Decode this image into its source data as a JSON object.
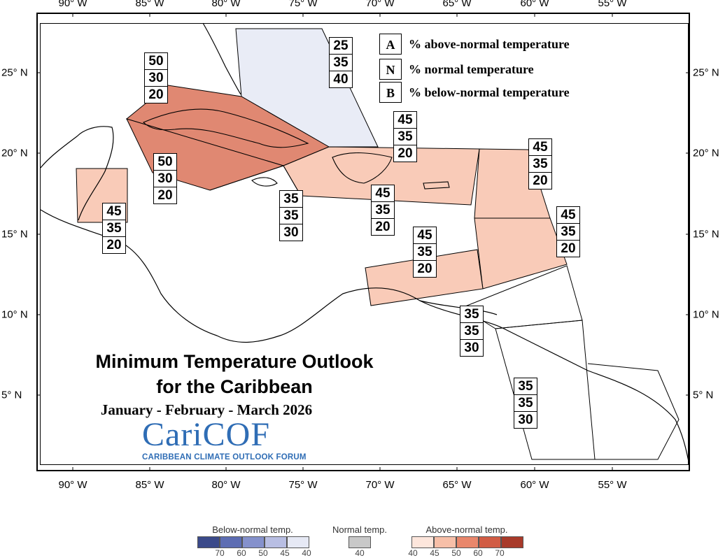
{
  "axes": {
    "longitudes": [
      "90° W",
      "85° W",
      "80° W",
      "75° W",
      "70° W",
      "65° W",
      "60° W",
      "55° W"
    ],
    "latitudes": [
      "25° N",
      "20° N",
      "15° N",
      "10° N",
      "5° N"
    ]
  },
  "legend_keys": [
    {
      "letter": "A",
      "text": "% above-normal temperature"
    },
    {
      "letter": "N",
      "text": "% normal temperature"
    },
    {
      "letter": "B",
      "text": "% below-normal temperature"
    }
  ],
  "regions": [
    {
      "id": "bahamas",
      "values": [
        "25",
        "35",
        "40"
      ],
      "fill": "#e9ecf6"
    },
    {
      "id": "cuba",
      "values": [
        "50",
        "30",
        "20"
      ],
      "fill": "#e08872"
    },
    {
      "id": "western-cuba-cayman",
      "values": [
        "50",
        "30",
        "20"
      ],
      "fill": "#e08872"
    },
    {
      "id": "belize",
      "values": [
        "45",
        "35",
        "20"
      ],
      "fill": "#f9cbb8"
    },
    {
      "id": "jamaica",
      "values": [
        "35",
        "35",
        "30"
      ],
      "fill": "#ffffff"
    },
    {
      "id": "hispaniola-pr",
      "values": [
        "45",
        "35",
        "20"
      ],
      "fill": "#f9cbb8"
    },
    {
      "id": "greater-antilles-east",
      "values": [
        "45",
        "35",
        "20"
      ],
      "fill": "#f9cbb8"
    },
    {
      "id": "leewards",
      "values": [
        "45",
        "35",
        "20"
      ],
      "fill": "#f9cbb8"
    },
    {
      "id": "windwards",
      "values": [
        "45",
        "35",
        "20"
      ],
      "fill": "#f9cbb8"
    },
    {
      "id": "abc-islands",
      "values": [
        "45",
        "35",
        "20"
      ],
      "fill": "#f9cbb8"
    },
    {
      "id": "trinidad-tobago",
      "values": [
        "35",
        "35",
        "30"
      ],
      "fill": "#ffffff"
    },
    {
      "id": "guianas",
      "values": [
        "35",
        "35",
        "30"
      ],
      "fill": "#ffffff"
    }
  ],
  "title": {
    "line1": "Minimum Temperature Outlook",
    "line2": "for the Caribbean",
    "season": "January - February - March 2026"
  },
  "logo": {
    "name": "CariCOF",
    "tagline": "CARIBBEAN CLIMATE OUTLOOK FORUM"
  },
  "colorbar": {
    "below_label": "Below-normal temp.",
    "normal_label": "Normal temp.",
    "above_label": "Above-normal temp.",
    "below_colors": [
      "#3b4a8a",
      "#5d6db3",
      "#8591cc",
      "#b8bee3",
      "#e6e9f5"
    ],
    "below_ticks": [
      "70",
      "60",
      "50",
      "45",
      "40"
    ],
    "normal_color": "#c8c8c8",
    "normal_tick": "40",
    "above_colors": [
      "#fde6dc",
      "#f7bfa8",
      "#e9876c",
      "#d15c44",
      "#a83a2a"
    ],
    "above_ticks": [
      "40",
      "45",
      "50",
      "60",
      "70"
    ]
  }
}
